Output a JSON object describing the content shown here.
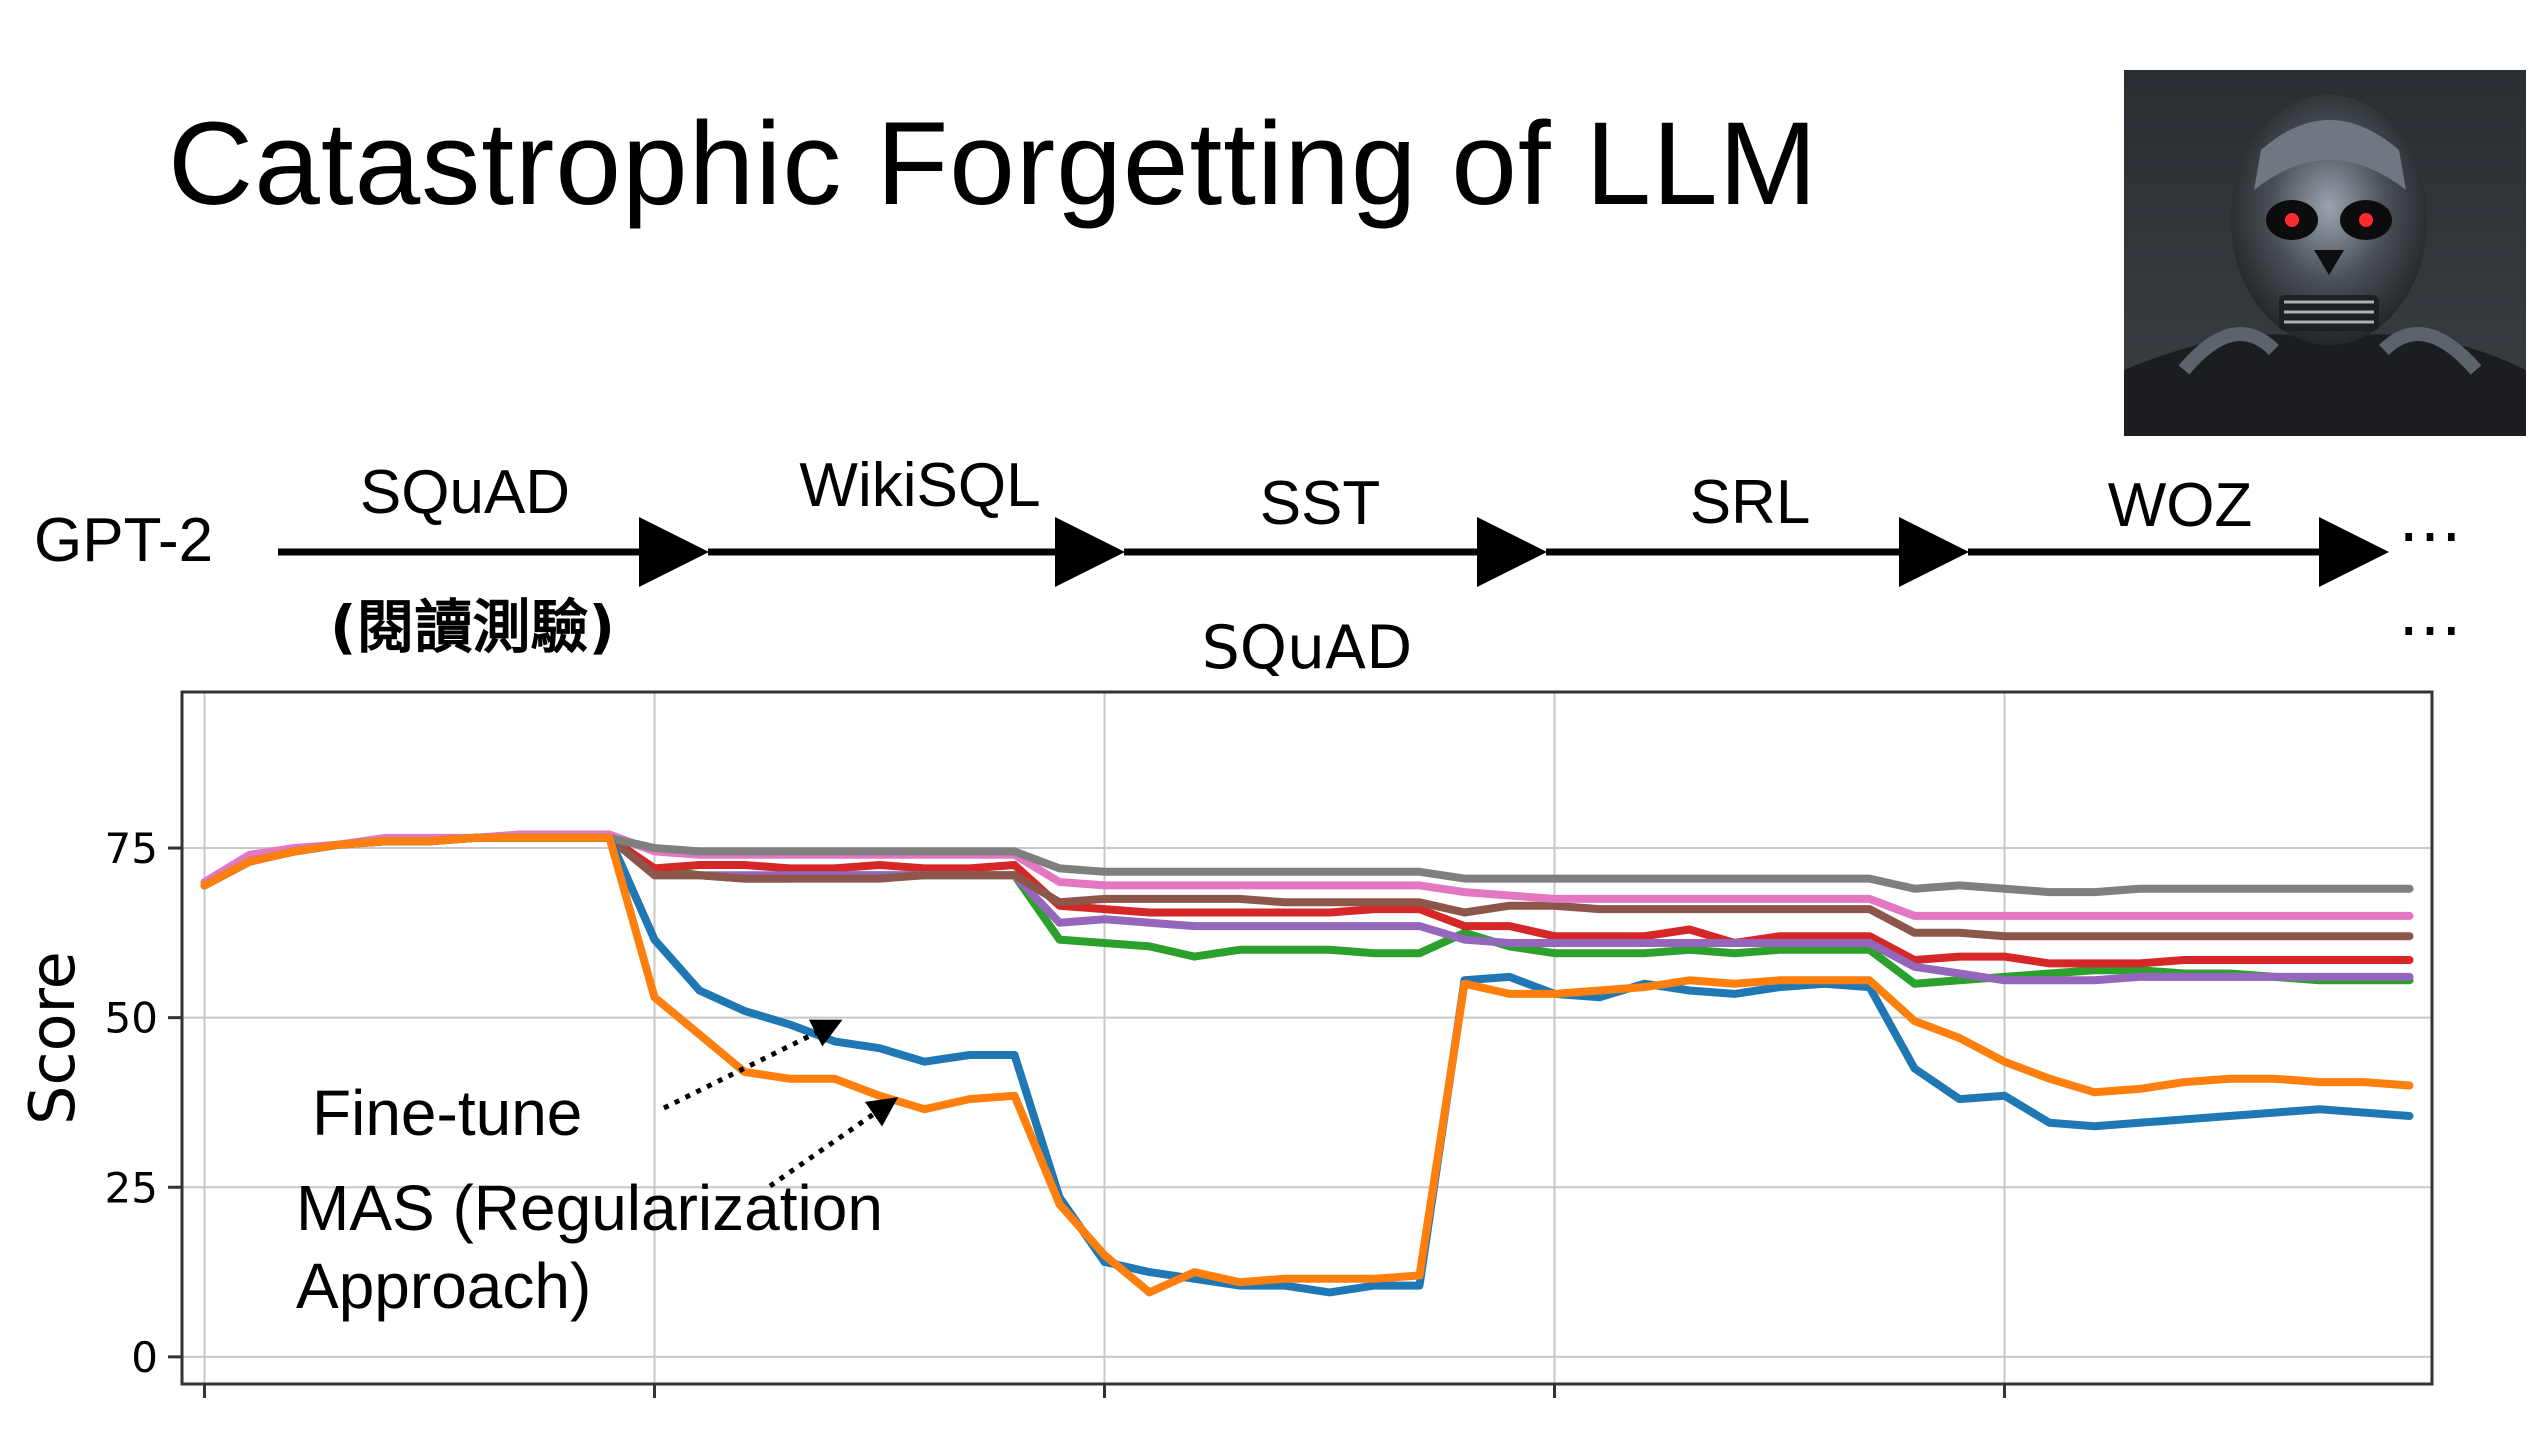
{
  "slide": {
    "title": "Catastrophic Forgetting of LLM",
    "model_label": "GPT-2",
    "ellipsis": "…",
    "tasks": [
      {
        "name": "SQuAD",
        "note": "(閱讀測驗)"
      },
      {
        "name": "WikiSQL"
      },
      {
        "name": "SST"
      },
      {
        "name": "SRL"
      },
      {
        "name": "WOZ"
      }
    ]
  },
  "annotations": {
    "fine_tune": "Fine-tune",
    "mas_line1": "MAS (Regularization",
    "mas_line2": "Approach)"
  },
  "image": {
    "description_icon": "terminator-robot-icon"
  },
  "chart_data": {
    "type": "line",
    "title": "SQuAD",
    "xlabel": "",
    "ylabel": "Score",
    "ylim": [
      -4,
      98
    ],
    "xlim": [
      -0.5,
      49.5
    ],
    "yticks": [
      0,
      25,
      50,
      75
    ],
    "xgrid": [
      0,
      10,
      20,
      30,
      40
    ],
    "grid": true,
    "series": [
      {
        "key": "fine_tune",
        "color": "#1f77b4",
        "x": [
          0,
          1,
          2,
          3,
          4,
          5,
          6,
          7,
          8,
          9,
          10,
          11,
          12,
          13,
          14,
          15,
          16,
          17,
          18,
          19,
          20,
          21,
          22,
          23,
          24,
          25,
          26,
          27,
          28,
          29,
          30,
          31,
          32,
          33,
          34,
          35,
          36,
          37,
          38,
          39,
          40,
          41,
          42,
          43,
          44,
          45,
          46,
          47,
          48,
          49
        ],
        "values": [
          69.5,
          73,
          74.5,
          75.5,
          76,
          76,
          76.5,
          76.5,
          76.5,
          76.5,
          61.5,
          54,
          51,
          49,
          46.5,
          45.5,
          43.5,
          44.5,
          44.5,
          23.5,
          14,
          12.5,
          11.5,
          10.5,
          10.5,
          9.5,
          10.5,
          10.5,
          55.5,
          56,
          53.5,
          53,
          55,
          54,
          53.5,
          54.5,
          55,
          54.5,
          42.5,
          38,
          38.5,
          34.5,
          34,
          34.5,
          35,
          35.5,
          36,
          36.5,
          36,
          35.5
        ]
      },
      {
        "key": "mas",
        "color": "#ff7f0e",
        "x": [
          0,
          1,
          2,
          3,
          4,
          5,
          6,
          7,
          8,
          9,
          10,
          11,
          12,
          13,
          14,
          15,
          16,
          17,
          18,
          19,
          20,
          21,
          22,
          23,
          24,
          25,
          26,
          27,
          28,
          29,
          30,
          31,
          32,
          33,
          34,
          35,
          36,
          37,
          38,
          39,
          40,
          41,
          42,
          43,
          44,
          45,
          46,
          47,
          48,
          49
        ],
        "values": [
          69.5,
          73,
          74.5,
          75.5,
          76,
          76,
          76.5,
          76.5,
          76.5,
          76.5,
          53,
          47.5,
          42,
          41,
          41,
          38.5,
          36.5,
          38,
          38.5,
          22.5,
          15,
          9.5,
          12.5,
          11,
          11.5,
          11.5,
          11.5,
          12,
          55,
          53.5,
          53.5,
          54,
          54.5,
          55.5,
          55,
          55.5,
          55.5,
          55.5,
          49.5,
          47,
          43.5,
          41,
          39,
          39.5,
          40.5,
          41,
          41,
          40.5,
          40.5,
          40
        ]
      },
      {
        "key": "green",
        "color": "#2ca02c",
        "x": [
          0,
          1,
          2,
          3,
          4,
          5,
          6,
          7,
          8,
          9,
          10,
          11,
          12,
          13,
          14,
          15,
          16,
          17,
          18,
          19,
          20,
          21,
          22,
          23,
          24,
          25,
          26,
          27,
          28,
          29,
          30,
          31,
          32,
          33,
          34,
          35,
          36,
          37,
          38,
          39,
          40,
          41,
          42,
          43,
          44,
          45,
          46,
          47,
          48,
          49
        ],
        "values": [
          69.5,
          73,
          74.5,
          75.5,
          76,
          76,
          76.5,
          76.5,
          76.5,
          76.5,
          72,
          71,
          70.5,
          70.5,
          71,
          71,
          71,
          71,
          71,
          61.5,
          61,
          60.5,
          59,
          60,
          60,
          60,
          59.5,
          59.5,
          62.5,
          60.5,
          59.5,
          59.5,
          59.5,
          60,
          59.5,
          60,
          60,
          60,
          55,
          55.5,
          56,
          56.5,
          57,
          57,
          56.5,
          56.5,
          56,
          55.5,
          55.5,
          55.5
        ]
      },
      {
        "key": "red",
        "color": "#d62728",
        "x": [
          0,
          1,
          2,
          3,
          4,
          5,
          6,
          7,
          8,
          9,
          10,
          11,
          12,
          13,
          14,
          15,
          16,
          17,
          18,
          19,
          20,
          21,
          22,
          23,
          24,
          25,
          26,
          27,
          28,
          29,
          30,
          31,
          32,
          33,
          34,
          35,
          36,
          37,
          38,
          39,
          40,
          41,
          42,
          43,
          44,
          45,
          46,
          47,
          48,
          49
        ],
        "values": [
          69.5,
          73,
          74.5,
          75.5,
          76,
          76,
          76.5,
          76.5,
          76.5,
          76.5,
          72,
          72.5,
          72.5,
          72,
          72,
          72.5,
          72,
          72,
          72.5,
          66.5,
          66,
          65.5,
          65.5,
          65.5,
          65.5,
          65.5,
          66,
          66,
          63.5,
          63.5,
          62,
          62,
          62,
          63,
          61,
          62,
          62,
          62,
          58.5,
          59,
          59,
          58,
          58,
          58,
          58.5,
          58.5,
          58.5,
          58.5,
          58.5,
          58.5
        ]
      },
      {
        "key": "purple",
        "color": "#9467bd",
        "x": [
          0,
          1,
          2,
          3,
          4,
          5,
          6,
          7,
          8,
          9,
          10,
          11,
          12,
          13,
          14,
          15,
          16,
          17,
          18,
          19,
          20,
          21,
          22,
          23,
          24,
          25,
          26,
          27,
          28,
          29,
          30,
          31,
          32,
          33,
          34,
          35,
          36,
          37,
          38,
          39,
          40,
          41,
          42,
          43,
          44,
          45,
          46,
          47,
          48,
          49
        ],
        "values": [
          69.5,
          73,
          74.5,
          75.5,
          76,
          76,
          76.5,
          76.5,
          76.5,
          76.5,
          71,
          71,
          71,
          71,
          71,
          71,
          71,
          71,
          71,
          64,
          64.5,
          64,
          63.5,
          63.5,
          63.5,
          63.5,
          63.5,
          63.5,
          61.5,
          61,
          61,
          61,
          61,
          61,
          61,
          61,
          61,
          61,
          57.5,
          56.5,
          55.5,
          55.5,
          55.5,
          56,
          56,
          56,
          56,
          56,
          56,
          56
        ]
      },
      {
        "key": "brown",
        "color": "#8c564b",
        "x": [
          0,
          1,
          2,
          3,
          4,
          5,
          6,
          7,
          8,
          9,
          10,
          11,
          12,
          13,
          14,
          15,
          16,
          17,
          18,
          19,
          20,
          21,
          22,
          23,
          24,
          25,
          26,
          27,
          28,
          29,
          30,
          31,
          32,
          33,
          34,
          35,
          36,
          37,
          38,
          39,
          40,
          41,
          42,
          43,
          44,
          45,
          46,
          47,
          48,
          49
        ],
        "values": [
          69.5,
          73,
          74.5,
          75.5,
          76,
          76,
          76.5,
          76.5,
          76.5,
          76.5,
          71,
          71,
          70.5,
          70.5,
          70.5,
          70.5,
          71,
          71,
          71,
          67,
          67.5,
          67.5,
          67.5,
          67.5,
          67,
          67,
          67,
          67,
          65.5,
          66.5,
          66.5,
          66,
          66,
          66,
          66,
          66,
          66,
          66,
          62.5,
          62.5,
          62,
          62,
          62,
          62,
          62,
          62,
          62,
          62,
          62,
          62
        ]
      },
      {
        "key": "pink",
        "color": "#e377c2",
        "x": [
          0,
          1,
          2,
          3,
          4,
          5,
          6,
          7,
          8,
          9,
          10,
          11,
          12,
          13,
          14,
          15,
          16,
          17,
          18,
          19,
          20,
          21,
          22,
          23,
          24,
          25,
          26,
          27,
          28,
          29,
          30,
          31,
          32,
          33,
          34,
          35,
          36,
          37,
          38,
          39,
          40,
          41,
          42,
          43,
          44,
          45,
          46,
          47,
          48,
          49
        ],
        "values": [
          70,
          74,
          75,
          75.5,
          76.5,
          76.5,
          76.5,
          77,
          77,
          77,
          74.5,
          74,
          74,
          74,
          74,
          74,
          74,
          74,
          74,
          70,
          69.5,
          69.5,
          69.5,
          69.5,
          69.5,
          69.5,
          69.5,
          69.5,
          68.5,
          68,
          67.5,
          67.5,
          67.5,
          67.5,
          67.5,
          67.5,
          67.5,
          67.5,
          65,
          65,
          65,
          65,
          65,
          65,
          65,
          65,
          65,
          65,
          65,
          65
        ]
      },
      {
        "key": "gray",
        "color": "#7f7f7f",
        "x": [
          0,
          1,
          2,
          3,
          4,
          5,
          6,
          7,
          8,
          9,
          10,
          11,
          12,
          13,
          14,
          15,
          16,
          17,
          18,
          19,
          20,
          21,
          22,
          23,
          24,
          25,
          26,
          27,
          28,
          29,
          30,
          31,
          32,
          33,
          34,
          35,
          36,
          37,
          38,
          39,
          40,
          41,
          42,
          43,
          44,
          45,
          46,
          47,
          48,
          49
        ],
        "values": [
          69.5,
          73,
          74.5,
          75.5,
          76,
          76,
          76.5,
          76.5,
          76.5,
          76.5,
          75,
          74.5,
          74.5,
          74.5,
          74.5,
          74.5,
          74.5,
          74.5,
          74.5,
          72,
          71.5,
          71.5,
          71.5,
          71.5,
          71.5,
          71.5,
          71.5,
          71.5,
          70.5,
          70.5,
          70.5,
          70.5,
          70.5,
          70.5,
          70.5,
          70.5,
          70.5,
          70.5,
          69,
          69.5,
          69,
          68.5,
          68.5,
          69,
          69,
          69,
          69,
          69,
          69,
          69
        ]
      }
    ]
  }
}
